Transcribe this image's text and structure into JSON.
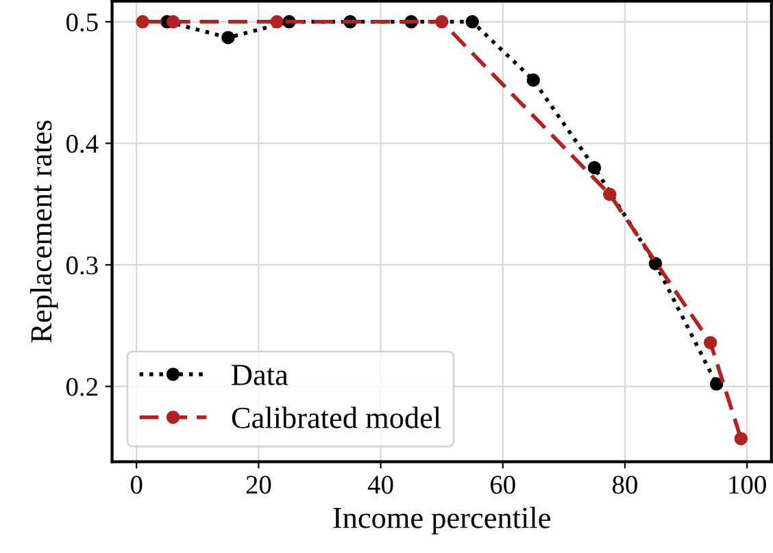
{
  "chart_data": {
    "type": "line",
    "xlabel": "Income percentile",
    "ylabel": "Replacement rates",
    "xlim": [
      -4,
      104
    ],
    "ylim": [
      0.138,
      0.517
    ],
    "xticks": [
      0,
      20,
      40,
      60,
      80,
      100
    ],
    "yticks": [
      0.2,
      0.3,
      0.4,
      0.5
    ],
    "grid": true,
    "legend": "bottom left",
    "marker": "circle",
    "series": [
      {
        "name": "Data",
        "color": "#000000",
        "line_style": "dotted",
        "x": [
          5,
          15,
          25,
          35,
          45,
          55,
          65,
          75,
          85,
          95
        ],
        "values": [
          0.5,
          0.487,
          0.5,
          0.5,
          0.5,
          0.5,
          0.452,
          0.38,
          0.301,
          0.202
        ]
      },
      {
        "name": "Calibrated model",
        "color": "#b22222",
        "line_style": "dashed",
        "x": [
          1,
          6,
          23,
          50,
          77.5,
          94,
          99
        ],
        "values": [
          0.5,
          0.5,
          0.5,
          0.5,
          0.358,
          0.236,
          0.157
        ]
      }
    ]
  }
}
